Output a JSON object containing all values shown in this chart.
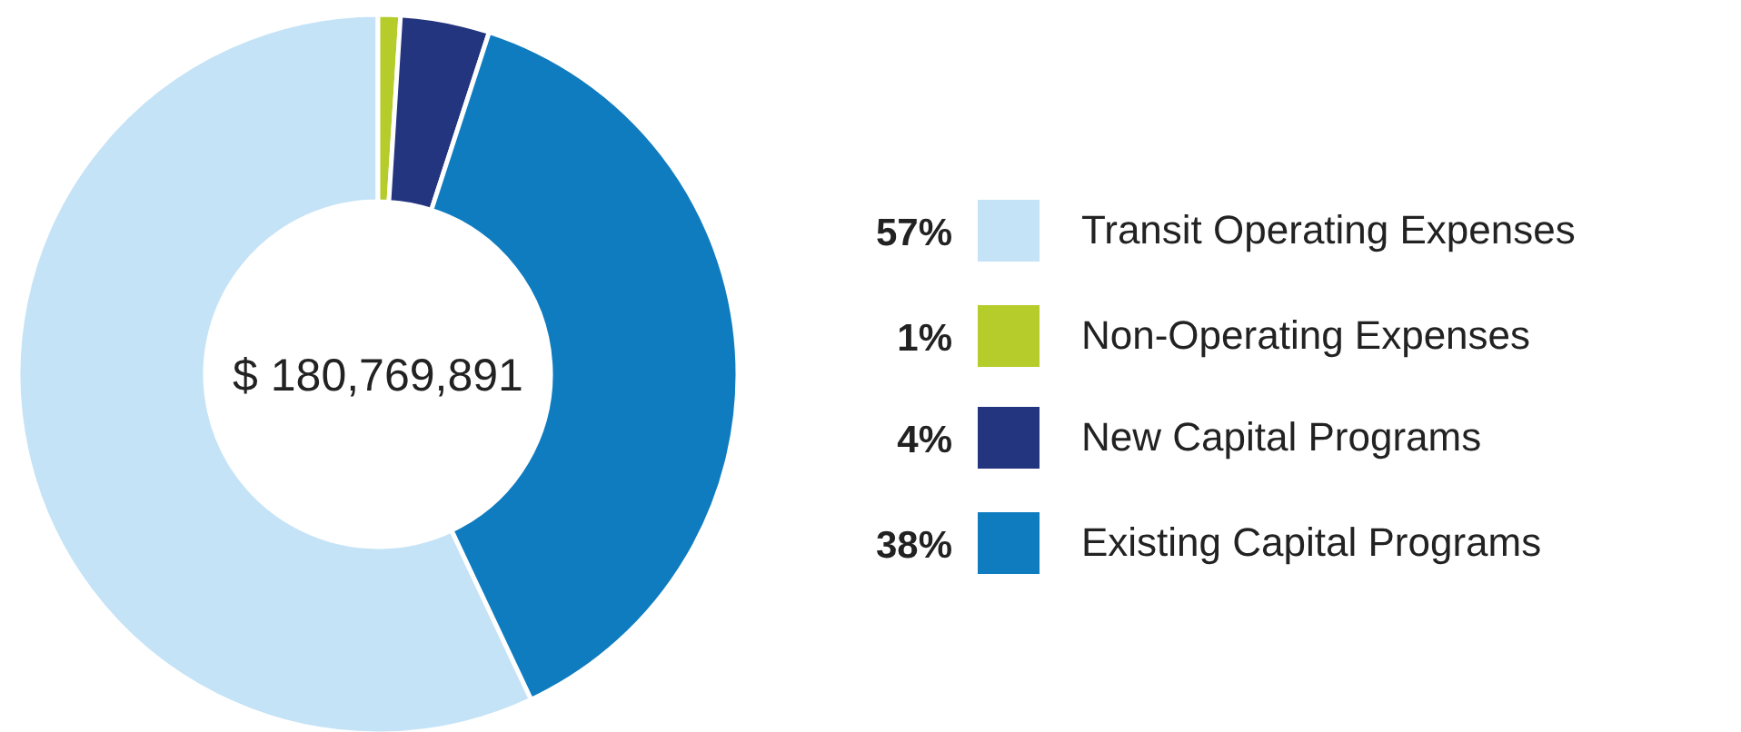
{
  "chart_data": {
    "type": "donut",
    "categories": [
      "Transit Operating Expenses",
      "Non-Operating Expenses",
      "New Capital Programs",
      "Existing Capital Programs"
    ],
    "values": [
      57,
      1,
      4,
      38
    ],
    "colors": [
      "#c5e3f6",
      "#b5cc2a",
      "#24357f",
      "#0f7cc0"
    ],
    "value_labels": [
      "57%",
      "1%",
      "4%",
      "38%"
    ],
    "legend": "right",
    "annotations": [
      "$ 180,769,891"
    ]
  }
}
